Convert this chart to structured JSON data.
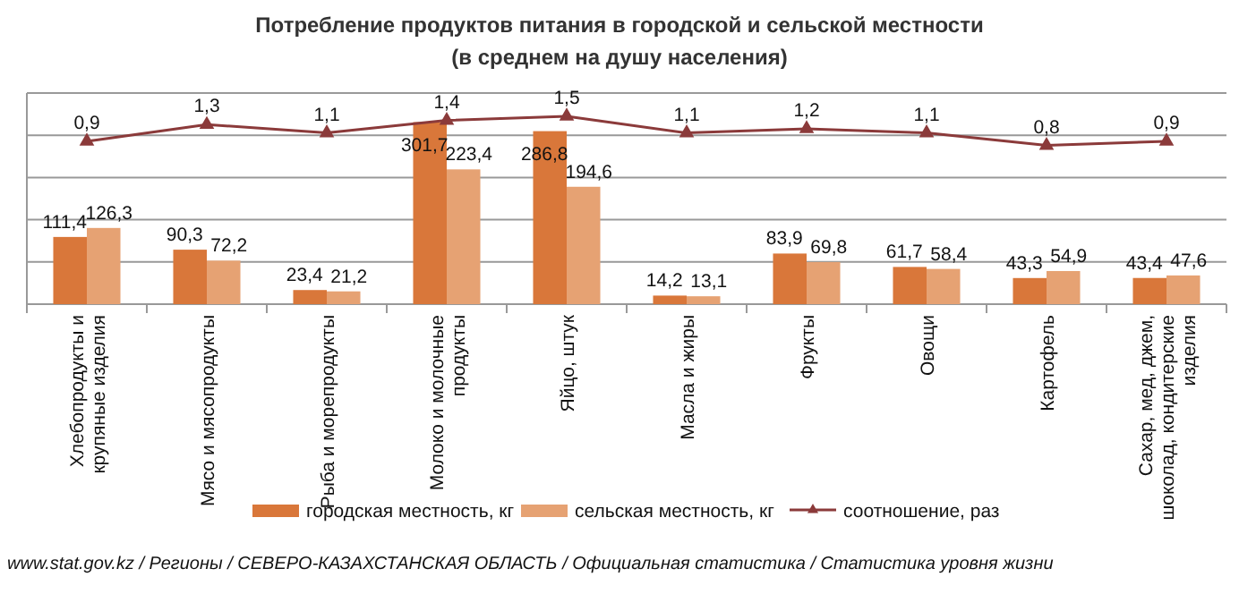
{
  "chart_data": {
    "type": "bar",
    "title": "Потребление продуктов питания  в городской и сельской местности",
    "subtitle": "(в среднем на душу населения)",
    "categories": [
      "Хлебопродукты и крупяные изделия",
      "Мясо и мясопродукты",
      "Рыба и морепродукты",
      "Молоко и молочные продукты",
      "Яйцо, штук",
      "Масла и жиры",
      "Фрукты",
      "Овощи",
      "Картофель",
      "Сахар, мед, джем, шоколад, кондитерские изделия"
    ],
    "series": [
      {
        "name": "городская местность, кг",
        "color": "#d9773a",
        "values": [
          111.4,
          90.3,
          23.4,
          301.7,
          286.8,
          14.2,
          83.9,
          61.7,
          43.3,
          43.4
        ],
        "value_labels": [
          "111,4",
          "90,3",
          "23,4",
          "301,7",
          "286,8",
          "14,2",
          "83,9",
          "61,7",
          "43,3",
          "43,4"
        ]
      },
      {
        "name": "сельская местность, кг",
        "color": "#e6a273",
        "values": [
          126.3,
          72.2,
          21.2,
          223.4,
          194.6,
          13.1,
          69.8,
          58.4,
          54.9,
          47.6
        ],
        "value_labels": [
          "126,3",
          "72,2",
          "21,2",
          "223,4",
          "194,6",
          "13,1",
          "69,8",
          "58,4",
          "54,9",
          "47,6"
        ]
      },
      {
        "name": "соотношение, раз",
        "type": "line",
        "axis": "y2",
        "color": "#8b3a3a",
        "marker": "triangle",
        "values": [
          0.9,
          1.3,
          1.1,
          1.4,
          1.5,
          1.1,
          1.2,
          1.1,
          0.8,
          0.9
        ],
        "value_labels": [
          "0,9",
          "1,3",
          "1,1",
          "1,4",
          "1,5",
          "1,1",
          "1,2",
          "1,1",
          "0,8",
          "0,9"
        ]
      }
    ],
    "grid": "y",
    "tick_labels": "x",
    "legend": "bottom",
    "annotations": [
      "www.stat.gov.kz / Регионы / СЕВЕРО-КАЗАХСТАНСКАЯ ОБЛАСТЬ / Официальная статистика / Статистика уровня жизни"
    ]
  }
}
